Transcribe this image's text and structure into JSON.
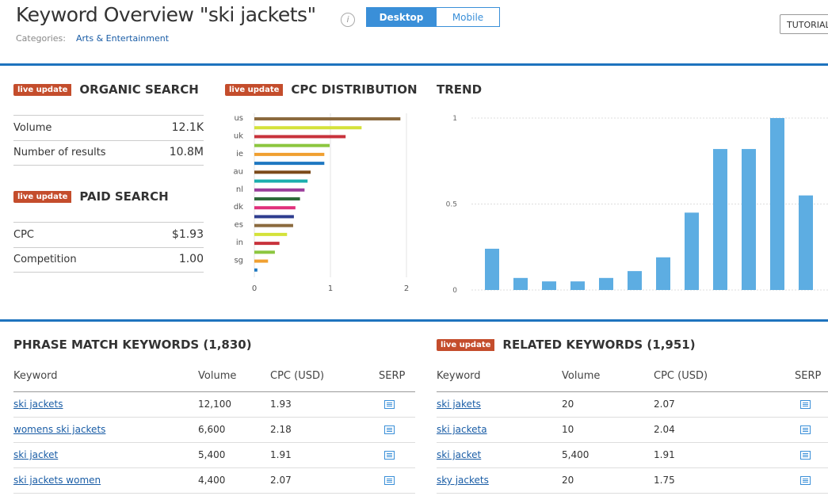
{
  "header": {
    "title": "Keyword Overview \"ski jackets\"",
    "info": "i",
    "desktop": "Desktop",
    "mobile": "Mobile",
    "tutorial": "TUTORIAL",
    "categories_label": "Categories:",
    "category": "Arts & Entertainment"
  },
  "organic": {
    "badge": "live update",
    "title": "ORGANIC SEARCH",
    "rows": [
      [
        "Volume",
        "12.1K"
      ],
      [
        "Number of results",
        "10.8M"
      ]
    ]
  },
  "paid": {
    "badge": "live update",
    "title": "PAID SEARCH",
    "rows": [
      [
        "CPC",
        "$1.93"
      ],
      [
        "Competition",
        "1.00"
      ]
    ]
  },
  "chart_data": [
    {
      "type": "hbar",
      "badge": "live update",
      "title": "CPC DISTRIBUTION",
      "categories": [
        "us",
        null,
        "uk",
        null,
        "ie",
        null,
        "au",
        null,
        "nl",
        null,
        "dk",
        null,
        "es",
        null,
        "in",
        null,
        "sg",
        null
      ],
      "values": [
        1.92,
        1.41,
        1.2,
        0.99,
        0.92,
        0.92,
        0.74,
        0.7,
        0.66,
        0.6,
        0.54,
        0.52,
        0.51,
        0.43,
        0.33,
        0.27,
        0.18,
        0.04
      ],
      "colors": [
        "#8b6a3e",
        "#d4e23a",
        "#c8323c",
        "#8cc63f",
        "#f0a030",
        "#1f78c1",
        "#7b4a1a",
        "#1aaeae",
        "#9b3d9b",
        "#2e6b3a",
        "#e0307a",
        "#2e3d8f",
        "#8b6a3e",
        "#d4e23a",
        "#c8323c",
        "#8cc63f",
        "#f0a030",
        "#1f78c1"
      ],
      "xlim": [
        0,
        2
      ],
      "xticks": [
        0,
        1,
        2
      ],
      "grid": true
    },
    {
      "type": "bar",
      "title": "TREND",
      "values": [
        0.24,
        0.07,
        0.05,
        0.05,
        0.07,
        0.11,
        0.19,
        0.45,
        0.82,
        0.82,
        1,
        0.55
      ],
      "color": "#5dade2",
      "ylim": [
        0,
        1
      ],
      "yticks": [
        0,
        0.5,
        1
      ],
      "grid": true
    }
  ],
  "phrase_table": {
    "title": "PHRASE MATCH KEYWORDS (1,830)",
    "columns": [
      "Keyword",
      "Volume",
      "CPC (USD)",
      "SERP"
    ],
    "rows": [
      [
        "ski jackets",
        "12,100",
        "1.93"
      ],
      [
        "womens ski jackets",
        "6,600",
        "2.18"
      ],
      [
        "ski jacket",
        "5,400",
        "1.91"
      ],
      [
        "ski jackets women",
        "4,400",
        "2.07"
      ]
    ]
  },
  "related_table": {
    "badge": "live update",
    "title": "RELATED KEYWORDS (1,951)",
    "columns": [
      "Keyword",
      "Volume",
      "CPC (USD)",
      "SERP"
    ],
    "rows": [
      [
        "ski jakets",
        "20",
        "2.07"
      ],
      [
        "ski jacketa",
        "10",
        "2.04"
      ],
      [
        "ski jacket",
        "5,400",
        "1.91"
      ],
      [
        "sky jackets",
        "20",
        "1.75"
      ]
    ]
  }
}
